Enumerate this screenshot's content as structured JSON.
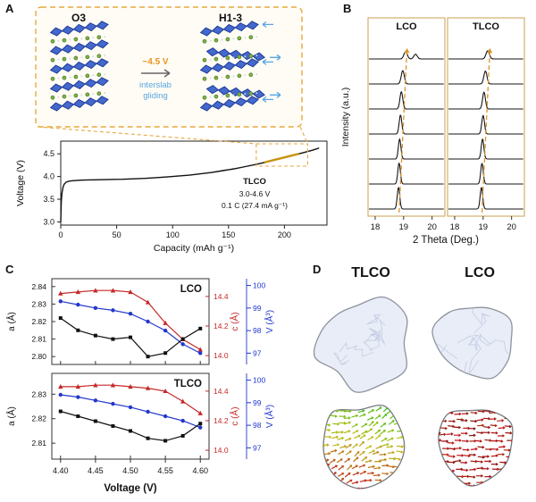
{
  "figure": {
    "panel_a": {
      "label": "A",
      "phase_left": "O3",
      "phase_right": "H1-3",
      "arrow_label_top": "~4.5 V",
      "arrow_label_bottom": "interslab gliding"
    },
    "panel_b": {
      "label": "B"
    },
    "panel_c": {
      "label": "C"
    },
    "panel_d": {
      "label": "D",
      "col_left": "TLCO",
      "col_right": "LCO"
    }
  },
  "colors": {
    "accent_orange": "#e6a93f",
    "highlight_gold": "#c8930f",
    "slab_blue": "#4468cc",
    "li_green": "#7cb342",
    "glide_blue": "#58a6e0",
    "c_red": "#c62828",
    "v_blue": "#2237cc"
  },
  "chart_data": [
    {
      "id": "voltage_capacity",
      "type": "line",
      "title": "",
      "xlabel": "Capacity (mAh g⁻¹)",
      "ylabel": "Voltage (V)",
      "xlim": [
        0,
        238
      ],
      "ylim": [
        2.93,
        4.78
      ],
      "xticks": [
        0,
        50,
        100,
        150,
        200
      ],
      "xtick_labels": [
        "0",
        "50",
        "100",
        "150",
        "200"
      ],
      "yticks": [
        3.0,
        3.5,
        4.0,
        4.5
      ],
      "ytick_labels": [
        "3.0",
        "3.5",
        "4.0",
        "4.5"
      ],
      "annotations": [
        "TLCO",
        "3.0-4.6 V",
        "0.1 C (27.4 mA g⁻¹)"
      ],
      "line_color": "#111111",
      "highlight_color": "#c8930f",
      "highlight_x": [
        178,
        216
      ],
      "x": [
        0,
        0.5,
        1,
        2,
        3,
        5,
        8,
        12,
        18,
        25,
        35,
        45,
        55,
        65,
        75,
        85,
        95,
        105,
        115,
        125,
        135,
        145,
        155,
        165,
        175,
        182,
        190,
        198,
        206,
        213,
        219,
        225,
        229,
        231
      ],
      "y": [
        3.0,
        3.45,
        3.62,
        3.76,
        3.83,
        3.88,
        3.9,
        3.91,
        3.92,
        3.925,
        3.93,
        3.935,
        3.94,
        3.95,
        3.96,
        3.975,
        3.99,
        4.01,
        4.03,
        4.06,
        4.09,
        4.13,
        4.17,
        4.22,
        4.27,
        4.31,
        4.36,
        4.41,
        4.46,
        4.5,
        4.54,
        4.58,
        4.61,
        4.63
      ]
    },
    {
      "id": "xrd_patterns",
      "type": "line-stack",
      "xlabel": "2 Theta (Deg.)",
      "ylabel": "Intensity (a.u.)",
      "panels": [
        {
          "title": "LCO",
          "xlim": [
            17.75,
            20.45
          ],
          "xticks": [
            18,
            19,
            20
          ],
          "xtick_labels": [
            "18",
            "19",
            "20"
          ],
          "arrow": [
            18.84,
            19.12
          ],
          "traces": [
            {
              "peaks": [
                [
                  18.82,
                  1.0,
                  0.045
                ]
              ]
            },
            {
              "peaks": [
                [
                  18.84,
                  0.97,
                  0.045
                ]
              ]
            },
            {
              "peaks": [
                [
                  18.86,
                  0.93,
                  0.045
                ]
              ]
            },
            {
              "peaks": [
                [
                  18.89,
                  0.88,
                  0.047
                ]
              ]
            },
            {
              "peaks": [
                [
                  18.92,
                  0.8,
                  0.05
                ]
              ]
            },
            {
              "peaks": [
                [
                  18.97,
                  0.62,
                  0.055
                ]
              ]
            },
            {
              "peaks": [
                [
                  19.07,
                  0.34,
                  0.06
                ],
                [
                  19.42,
                  0.22,
                  0.06
                ]
              ]
            }
          ]
        },
        {
          "title": "TLCO",
          "xlim": [
            17.75,
            20.45
          ],
          "xticks": [
            18,
            19,
            20
          ],
          "xtick_labels": [
            "18",
            "19",
            "20"
          ],
          "arrow": [
            18.96,
            19.24
          ],
          "traces": [
            {
              "peaks": [
                [
                  18.94,
                  1.0,
                  0.045
                ]
              ]
            },
            {
              "peaks": [
                [
                  18.96,
                  0.96,
                  0.045
                ]
              ]
            },
            {
              "peaks": [
                [
                  18.98,
                  0.92,
                  0.046
                ]
              ]
            },
            {
              "peaks": [
                [
                  19.0,
                  0.86,
                  0.048
                ]
              ]
            },
            {
              "peaks": [
                [
                  19.03,
                  0.78,
                  0.05
                ]
              ]
            },
            {
              "peaks": [
                [
                  19.08,
                  0.6,
                  0.055
                ]
              ]
            },
            {
              "peaks": [
                [
                  19.16,
                  0.38,
                  0.06
                ]
              ]
            }
          ]
        }
      ]
    },
    {
      "id": "lattice_parameters",
      "type": "multi-axis-line",
      "xlabel": "Voltage (V)",
      "x": [
        4.4,
        4.425,
        4.45,
        4.475,
        4.5,
        4.525,
        4.55,
        4.575,
        4.6
      ],
      "xlim": [
        4.3875,
        4.6125
      ],
      "xticks": [
        4.4,
        4.45,
        4.5,
        4.55,
        4.6
      ],
      "xtick_labels": [
        "4.40",
        "4.45",
        "4.50",
        "4.55",
        "4.60"
      ],
      "axes": {
        "a": {
          "label": "a (Å)",
          "color": "#111111"
        },
        "c": {
          "label": "c (Å)",
          "color": "#c62828",
          "lim": [
            13.94,
            14.52
          ],
          "ticks": [
            14.0,
            14.2,
            14.4
          ],
          "tick_labels": [
            "14.0",
            "14.2",
            "14.4"
          ]
        },
        "V": {
          "label": "V (Å³)",
          "color": "#2237cc",
          "lim": [
            96.5,
            100.3
          ],
          "ticks": [
            97,
            98,
            99,
            100
          ],
          "tick_labels": [
            "97",
            "98",
            "99",
            "100"
          ]
        }
      },
      "subplots": [
        {
          "title": "LCO",
          "a_lim": [
            2.7955,
            2.8445
          ],
          "a_ticks": [
            2.8,
            2.81,
            2.82,
            2.83,
            2.84
          ],
          "a_tick_labels": [
            "2.80",
            "2.81",
            "2.82",
            "2.83",
            "2.84"
          ],
          "a": [
            2.822,
            2.815,
            2.812,
            2.81,
            2.811,
            2.8,
            2.802,
            2.81,
            2.816
          ],
          "c": [
            14.42,
            14.43,
            14.44,
            14.44,
            14.43,
            14.36,
            14.22,
            14.11,
            14.04
          ],
          "V": [
            99.3,
            99.15,
            99.0,
            98.9,
            98.75,
            98.4,
            98.0,
            97.4,
            97.0
          ]
        },
        {
          "title": "TLCO",
          "a_lim": [
            2.8035,
            2.8385
          ],
          "a_ticks": [
            2.81,
            2.82,
            2.83
          ],
          "a_tick_labels": [
            "2.81",
            "2.82",
            "2.83"
          ],
          "a": [
            2.823,
            2.821,
            2.819,
            2.817,
            2.815,
            2.812,
            2.811,
            2.813,
            2.818
          ],
          "c": [
            14.43,
            14.43,
            14.44,
            14.44,
            14.43,
            14.42,
            14.4,
            14.33,
            14.25
          ],
          "V": [
            99.35,
            99.25,
            99.1,
            98.95,
            98.8,
            98.6,
            98.4,
            98.2,
            97.9
          ]
        }
      ]
    }
  ]
}
